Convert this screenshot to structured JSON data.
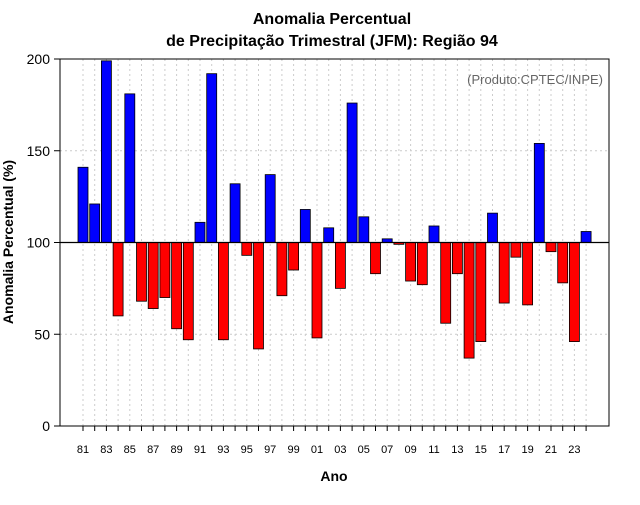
{
  "chart_data": {
    "type": "bar",
    "title_line1": "Anomalia Percentual",
    "title_line2": "de Precipitação Trimestral (JFM): Região 94",
    "xlabel": "Ano",
    "ylabel": "Anomalia Percentual (%)",
    "credit": "(Produto:CPTEC/INPE)",
    "baseline": 100,
    "ylim": [
      0,
      200
    ],
    "yticks": [
      0,
      50,
      100,
      150,
      200
    ],
    "colors": {
      "above": "#0000ff",
      "below": "#ff0000",
      "edge": "#000000",
      "grid": "#cccccc"
    },
    "categories": [
      "81",
      "82",
      "83",
      "84",
      "85",
      "86",
      "87",
      "88",
      "89",
      "90",
      "91",
      "92",
      "93",
      "94",
      "95",
      "96",
      "97",
      "98",
      "99",
      "00",
      "01",
      "02",
      "03",
      "04",
      "05",
      "06",
      "07",
      "08",
      "09",
      "10",
      "11",
      "12",
      "13",
      "14",
      "15",
      "16",
      "17",
      "18",
      "19",
      "20",
      "21",
      "22",
      "23",
      "24"
    ],
    "tick_labels": [
      "81",
      "83",
      "85",
      "87",
      "89",
      "91",
      "93",
      "95",
      "97",
      "99",
      "01",
      "03",
      "05",
      "07",
      "09",
      "11",
      "13",
      "15",
      "17",
      "19",
      "21",
      "23"
    ],
    "values": [
      141,
      121,
      199,
      60,
      181,
      68,
      64,
      70,
      53,
      47,
      111,
      192,
      47,
      132,
      93,
      42,
      137,
      71,
      85,
      118,
      48,
      108,
      75,
      176,
      114,
      83,
      102,
      99,
      79,
      77,
      109,
      56,
      83,
      37,
      46,
      116,
      67,
      92,
      66,
      154,
      95,
      78,
      46,
      106
    ]
  }
}
